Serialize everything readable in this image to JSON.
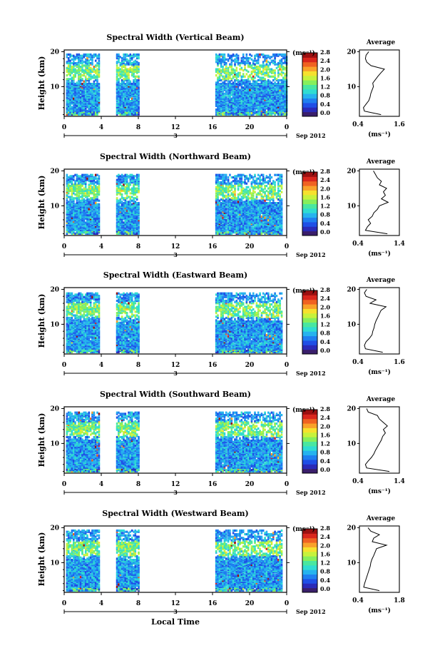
{
  "colorscale": [
    "#3a1e6b",
    "#2a2ab8",
    "#1f4fe6",
    "#1f7ff0",
    "#26b3ee",
    "#2fdcd2",
    "#49e7a0",
    "#86ef5c",
    "#c7f23c",
    "#f6e12e",
    "#f9a12a",
    "#f06222",
    "#d9261d",
    "#9c0f10"
  ],
  "common": {
    "date_label": "Sep 2012",
    "day_label": "3",
    "x_ticks": [
      "0",
      "4",
      "8",
      "12",
      "16",
      "20",
      "0"
    ],
    "y_label": "Height (km)",
    "y_ticks": [
      "20",
      "10"
    ],
    "cbar_unit": "(ms⁻¹)",
    "avg_title": "Average",
    "avg_xlabel": "(ms⁻¹)",
    "xlabel": "Local Time"
  },
  "chart_data": [
    {
      "type": "heatmap",
      "title": "Spectral Width (Vertical Beam)",
      "xlabel": "",
      "ylabel": "Height (km)",
      "x_range": [
        0,
        24
      ],
      "y_range": [
        1.5,
        20.5
      ],
      "data_intervals_hours": [
        [
          0.2,
          1.5
        ],
        [
          1.5,
          3.8
        ],
        [
          5.6,
          8.0
        ],
        [
          16.3,
          17.4
        ],
        [
          17.6,
          24.0
        ]
      ],
      "colorbar": {
        "label": "(ms⁻¹)",
        "ticks": [
          "2.8",
          "2.4",
          "2.0",
          "1.6",
          "1.2",
          "0.8",
          "0.4",
          "0.0"
        ]
      },
      "average_profile": {
        "title": "Average",
        "xlabel": "(ms⁻¹)",
        "x_ticks": [
          "0.4",
          "1.6"
        ],
        "x_range": [
          0.4,
          1.6
        ],
        "height_km": [
          2,
          3,
          4,
          5,
          6,
          7,
          8,
          9,
          10,
          11,
          12,
          13,
          14,
          15,
          16,
          17,
          18,
          19,
          20
        ],
        "value": [
          1.05,
          0.55,
          0.52,
          0.6,
          0.68,
          0.72,
          0.74,
          0.78,
          0.82,
          0.8,
          0.88,
          0.96,
          1.05,
          1.15,
          0.75,
          0.62,
          0.58,
          0.6,
          0.68
        ]
      }
    },
    {
      "type": "heatmap",
      "title": "Spectral Width (Northward Beam)",
      "xlabel": "",
      "ylabel": "Height (km)",
      "x_range": [
        0,
        24
      ],
      "y_range": [
        1.5,
        20.5
      ],
      "data_intervals_hours": [
        [
          0.2,
          1.5
        ],
        [
          1.5,
          3.8
        ],
        [
          5.6,
          8.0
        ],
        [
          16.3,
          17.4
        ],
        [
          17.6,
          23.5
        ]
      ],
      "colorbar": {
        "label": "(ms⁻¹)",
        "ticks": [
          "2.8",
          "2.4",
          "2.0",
          "1.6",
          "1.2",
          "0.8",
          "0.4",
          "0.0"
        ]
      },
      "average_profile": {
        "title": "Average",
        "xlabel": "(ms⁻¹)",
        "x_ticks": [
          "0.4",
          "1.4"
        ],
        "x_range": [
          0.4,
          1.4
        ],
        "height_km": [
          2,
          3,
          4,
          5,
          6,
          7,
          8,
          9,
          10,
          11,
          12,
          13,
          14,
          15,
          16,
          17,
          18,
          19,
          20
        ],
        "value": [
          1.1,
          0.55,
          0.6,
          0.68,
          0.62,
          0.72,
          0.76,
          0.85,
          0.9,
          1.12,
          0.95,
          1.05,
          1.0,
          1.08,
          0.9,
          0.95,
          0.85,
          0.8,
          0.75
        ]
      }
    },
    {
      "type": "heatmap",
      "title": "Spectral Width (Eastward Beam)",
      "xlabel": "",
      "ylabel": "Height (km)",
      "x_range": [
        0,
        24
      ],
      "y_range": [
        1.5,
        20.5
      ],
      "data_intervals_hours": [
        [
          0.2,
          1.5
        ],
        [
          1.5,
          3.8
        ],
        [
          5.6,
          8.0
        ],
        [
          16.3,
          17.4
        ],
        [
          17.6,
          23.5
        ]
      ],
      "colorbar": {
        "label": "(ms⁻¹)",
        "ticks": [
          "2.8",
          "2.4",
          "2.0",
          "1.6",
          "1.2",
          "0.8",
          "0.4",
          "0.0"
        ]
      },
      "average_profile": {
        "title": "Average",
        "xlabel": "(ms⁻¹)",
        "x_ticks": [
          "0.4",
          "1.6"
        ],
        "x_range": [
          0.4,
          1.6
        ],
        "height_km": [
          2,
          3,
          4,
          5,
          6,
          7,
          8,
          9,
          10,
          11,
          12,
          13,
          14,
          15,
          16,
          17,
          18,
          19,
          20
        ],
        "value": [
          1.1,
          0.58,
          0.55,
          0.6,
          0.7,
          0.78,
          0.8,
          0.84,
          0.86,
          0.9,
          0.95,
          1.0,
          1.05,
          1.2,
          0.72,
          0.9,
          0.6,
          0.55,
          0.62
        ]
      }
    },
    {
      "type": "heatmap",
      "title": "Spectral Width (Southward Beam)",
      "xlabel": "",
      "ylabel": "Height (km)",
      "x_range": [
        0,
        24
      ],
      "y_range": [
        1.5,
        20.5
      ],
      "data_intervals_hours": [
        [
          0.2,
          1.5
        ],
        [
          1.5,
          3.8
        ],
        [
          5.6,
          8.0
        ],
        [
          16.3,
          17.4
        ],
        [
          17.6,
          23.5
        ]
      ],
      "colorbar": {
        "label": "(ms⁻¹)",
        "ticks": [
          "2.8",
          "2.4",
          "2.0",
          "1.6",
          "1.2",
          "0.8",
          "0.4",
          "0.0"
        ]
      },
      "average_profile": {
        "title": "Average",
        "xlabel": "(ms⁻¹)",
        "x_ticks": [
          "0.4",
          "1.4"
        ],
        "x_range": [
          0.4,
          1.4
        ],
        "height_km": [
          2,
          3,
          4,
          5,
          6,
          7,
          8,
          9,
          10,
          11,
          12,
          13,
          14,
          15,
          16,
          17,
          18,
          19,
          20
        ],
        "value": [
          1.15,
          0.58,
          0.55,
          0.62,
          0.7,
          0.76,
          0.8,
          0.85,
          0.9,
          0.95,
          0.98,
          1.05,
          1.0,
          1.1,
          1.0,
          0.9,
          0.85,
          0.62,
          0.58
        ]
      }
    },
    {
      "type": "heatmap",
      "title": "Spectral Width (Westward Beam)",
      "xlabel": "Local Time",
      "ylabel": "Height (km)",
      "x_range": [
        0,
        24
      ],
      "y_range": [
        1.5,
        20.5
      ],
      "data_intervals_hours": [
        [
          0.2,
          1.5
        ],
        [
          1.5,
          3.8
        ],
        [
          5.6,
          8.0
        ],
        [
          16.3,
          17.4
        ],
        [
          17.6,
          23.5
        ]
      ],
      "colorbar": {
        "label": "(ms⁻¹)",
        "ticks": [
          "2.8",
          "2.4",
          "2.0",
          "1.6",
          "1.2",
          "0.8",
          "0.4",
          "0.0"
        ]
      },
      "average_profile": {
        "title": "Average",
        "xlabel": "(ms⁻¹)",
        "x_ticks": [
          "0.4",
          "1.8"
        ],
        "x_range": [
          0.4,
          1.8
        ],
        "height_km": [
          2,
          3,
          4,
          5,
          6,
          7,
          8,
          9,
          10,
          11,
          12,
          13,
          14,
          15,
          16,
          17,
          18,
          19,
          20
        ],
        "value": [
          1.1,
          0.55,
          0.58,
          0.62,
          0.66,
          0.7,
          0.74,
          0.78,
          0.8,
          0.84,
          0.9,
          0.95,
          1.0,
          1.35,
          0.85,
          0.9,
          1.1,
          0.8,
          0.7
        ]
      }
    }
  ]
}
